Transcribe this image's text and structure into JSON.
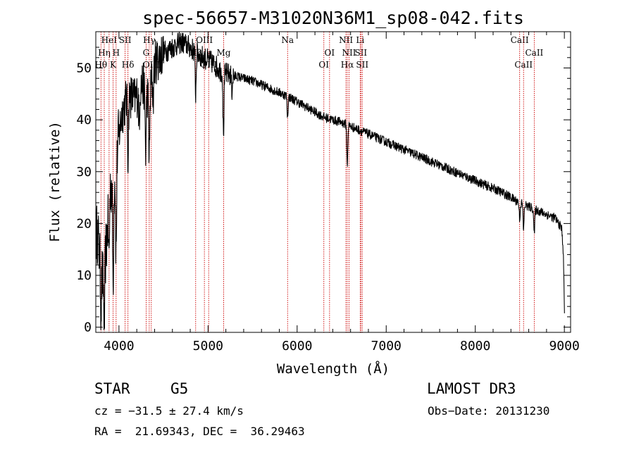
{
  "chart_data": {
    "type": "line",
    "title": "spec-56657-M31020N36M1_sp08-042.fits",
    "xlabel": "Wavelength (Å)",
    "ylabel": "Flux (relative)",
    "xlim": [
      3740,
      9070
    ],
    "ylim": [
      -1,
      57
    ],
    "xticks": [
      4000,
      5000,
      6000,
      7000,
      8000,
      9000
    ],
    "yticks": [
      0,
      10,
      20,
      30,
      40,
      50
    ],
    "grid": false,
    "line_color": "#000000",
    "marker_color": "#cc0000",
    "anchors": [
      [
        3760,
        18
      ],
      [
        3790,
        13
      ],
      [
        3820,
        9
      ],
      [
        3860,
        16
      ],
      [
        3900,
        27
      ],
      [
        3950,
        29
      ],
      [
        3985,
        35
      ],
      [
        4030,
        41
      ],
      [
        4100,
        45
      ],
      [
        4180,
        44
      ],
      [
        4260,
        47
      ],
      [
        4340,
        44
      ],
      [
        4400,
        51
      ],
      [
        4500,
        53
      ],
      [
        4600,
        54
      ],
      [
        4700,
        55
      ],
      [
        4800,
        54
      ],
      [
        4860,
        53
      ],
      [
        4950,
        52
      ],
      [
        5050,
        51
      ],
      [
        5170,
        49
      ],
      [
        5300,
        48.5
      ],
      [
        5500,
        47.5
      ],
      [
        5700,
        46
      ],
      [
        5900,
        44.5
      ],
      [
        6100,
        42.5
      ],
      [
        6300,
        40.5
      ],
      [
        6500,
        39.5
      ],
      [
        6700,
        38
      ],
      [
        6900,
        36.5
      ],
      [
        7100,
        35
      ],
      [
        7300,
        33.5
      ],
      [
        7500,
        32
      ],
      [
        7700,
        30.5
      ],
      [
        7900,
        29
      ],
      [
        8100,
        27.5
      ],
      [
        8300,
        26
      ],
      [
        8500,
        24
      ],
      [
        8700,
        22.5
      ],
      [
        8900,
        21
      ],
      [
        8970,
        19
      ],
      [
        8990,
        14
      ],
      [
        9000,
        3
      ]
    ],
    "absorption": [
      [
        3798,
        8
      ],
      [
        3835,
        12
      ],
      [
        3889,
        10
      ],
      [
        3934,
        20
      ],
      [
        3968,
        18
      ],
      [
        4101,
        12
      ],
      [
        4226,
        6
      ],
      [
        4300,
        12
      ],
      [
        4340,
        12
      ],
      [
        4384,
        5
      ],
      [
        4861,
        8
      ],
      [
        5173,
        12
      ],
      [
        5268,
        3
      ],
      [
        5893,
        4
      ],
      [
        6563,
        8
      ],
      [
        8498,
        3
      ],
      [
        8542,
        5
      ],
      [
        8662,
        5
      ]
    ],
    "lines": [
      {
        "name": "Hθ",
        "wavelength": 3798,
        "label_row": 3
      },
      {
        "name": "Hη",
        "wavelength": 3835,
        "label_row": 2
      },
      {
        "name": "HeI",
        "wavelength": 3889,
        "label_row": 1
      },
      {
        "name": "K",
        "wavelength": 3934,
        "label_row": 3
      },
      {
        "name": "H",
        "wavelength": 3968,
        "label_row": 2
      },
      {
        "name": "SII",
        "wavelength": 4069,
        "label_row": 1
      },
      {
        "name": "Hδ",
        "wavelength": 4101,
        "label_row": 3
      },
      {
        "name": "G",
        "wavelength": 4305,
        "label_row": 2
      },
      {
        "name": "Hγ",
        "wavelength": 4340,
        "label_row": 1
      },
      {
        "name": "OIII",
        "wavelength": 4363,
        "label_row": 3
      },
      {
        "name": "Hβ",
        "wavelength": 4861,
        "label_row": 2
      },
      {
        "name": "OIII",
        "wavelength": 4959,
        "label_row": 1
      },
      {
        "name": "OIII",
        "wavelength": 5007,
        "label_row": 3
      },
      {
        "name": "Mg",
        "wavelength": 5175,
        "label_row": 2
      },
      {
        "name": "Na",
        "wavelength": 5893,
        "label_row": 1
      },
      {
        "name": "OI",
        "wavelength": 6300,
        "label_row": 3
      },
      {
        "name": "OI",
        "wavelength": 6364,
        "label_row": 2
      },
      {
        "name": "NII",
        "wavelength": 6548,
        "label_row": 1
      },
      {
        "name": "Hα",
        "wavelength": 6563,
        "label_row": 3
      },
      {
        "name": "NII",
        "wavelength": 6583,
        "label_row": 2
      },
      {
        "name": "Li",
        "wavelength": 6708,
        "label_row": 1
      },
      {
        "name": "SII",
        "wavelength": 6716,
        "label_row": 2
      },
      {
        "name": "SII",
        "wavelength": 6731,
        "label_row": 3
      },
      {
        "name": "CaII",
        "wavelength": 8498,
        "label_row": 1
      },
      {
        "name": "CaII",
        "wavelength": 8542,
        "label_row": 3
      },
      {
        "name": "CaII",
        "wavelength": 8662,
        "label_row": 2
      }
    ]
  },
  "info": {
    "object_class": "STAR",
    "subclass": "G5",
    "survey": "LAMOST DR3",
    "cz": "cz = −31.5 ± 27.4 km/s",
    "obs_date": "Obs−Date: 20131230",
    "coords": "RA =  21.69343, DEC =  36.29463"
  }
}
